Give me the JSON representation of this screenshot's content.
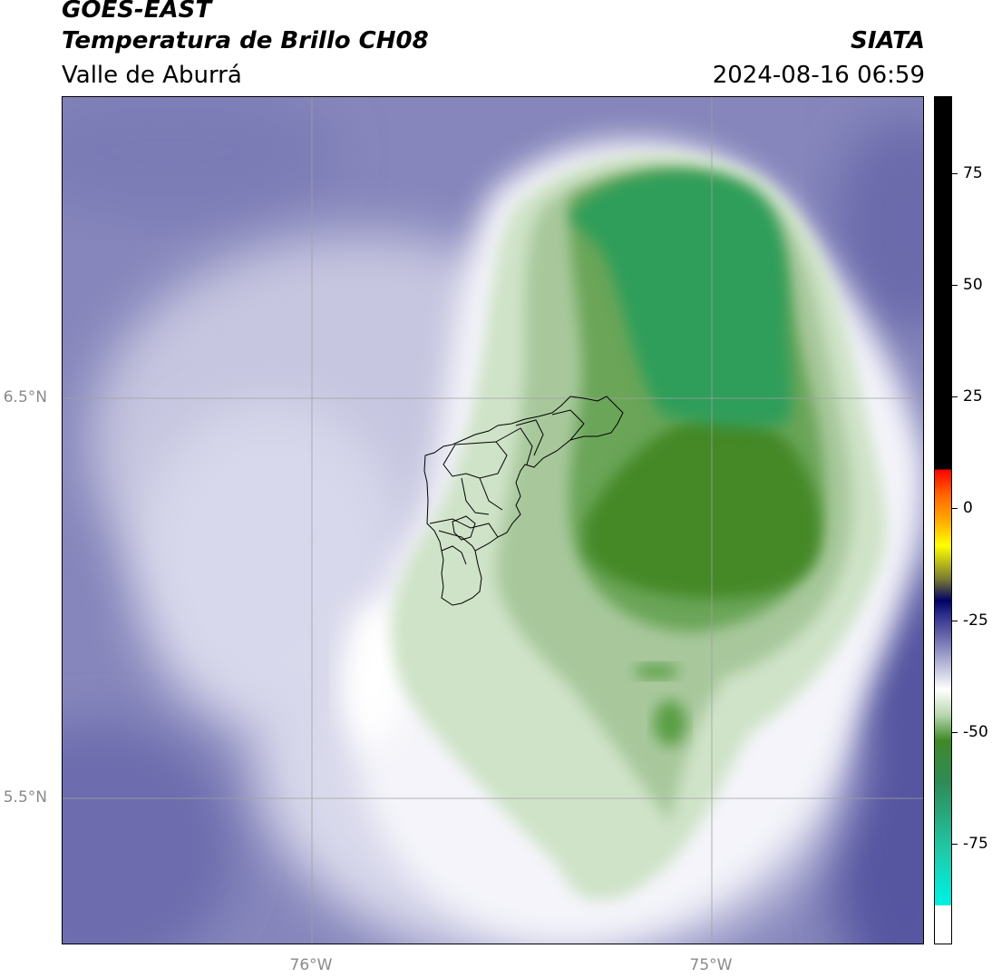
{
  "header": {
    "satellite": "GOES-EAST",
    "product": "Temperatura de Brillo CH08",
    "region": "Valle de Aburrá",
    "organization": "SIATA",
    "timestamp": "2024-08-16 06:59"
  },
  "map": {
    "lat_ticks": [
      {
        "value": 6.5,
        "label": "6.5°N"
      },
      {
        "value": 5.5,
        "label": "5.5°N"
      }
    ],
    "lon_ticks": [
      {
        "value": -76.0,
        "label": "76°W"
      },
      {
        "value": -75.0,
        "label": "75°W"
      }
    ],
    "extent": {
      "lon_min": -76.62,
      "lon_max": -74.53,
      "lat_min": 5.13,
      "lat_max": 7.25
    },
    "features": [
      "brightness-temperature-field",
      "valle-de-aburra-municipal-boundaries"
    ]
  },
  "colorbar": {
    "ticks": [
      {
        "value": 75,
        "label": "75"
      },
      {
        "value": 50,
        "label": "50"
      },
      {
        "value": 25,
        "label": "25"
      },
      {
        "value": 0,
        "label": "0"
      },
      {
        "value": -25,
        "label": "-25"
      },
      {
        "value": -50,
        "label": "-50"
      },
      {
        "value": -75,
        "label": "-75"
      }
    ],
    "range": [
      -97,
      93
    ],
    "colors": {
      "warm_top": "#000000",
      "red": "#ff0000",
      "orange": "#ff8800",
      "yellow": "#ffff00",
      "navy": "#000066",
      "purple": "#6f6fb0",
      "white": "#ffffff",
      "green": "#3f8a28",
      "sea_green": "#2e8b57",
      "cyan": "#00eedd"
    }
  }
}
